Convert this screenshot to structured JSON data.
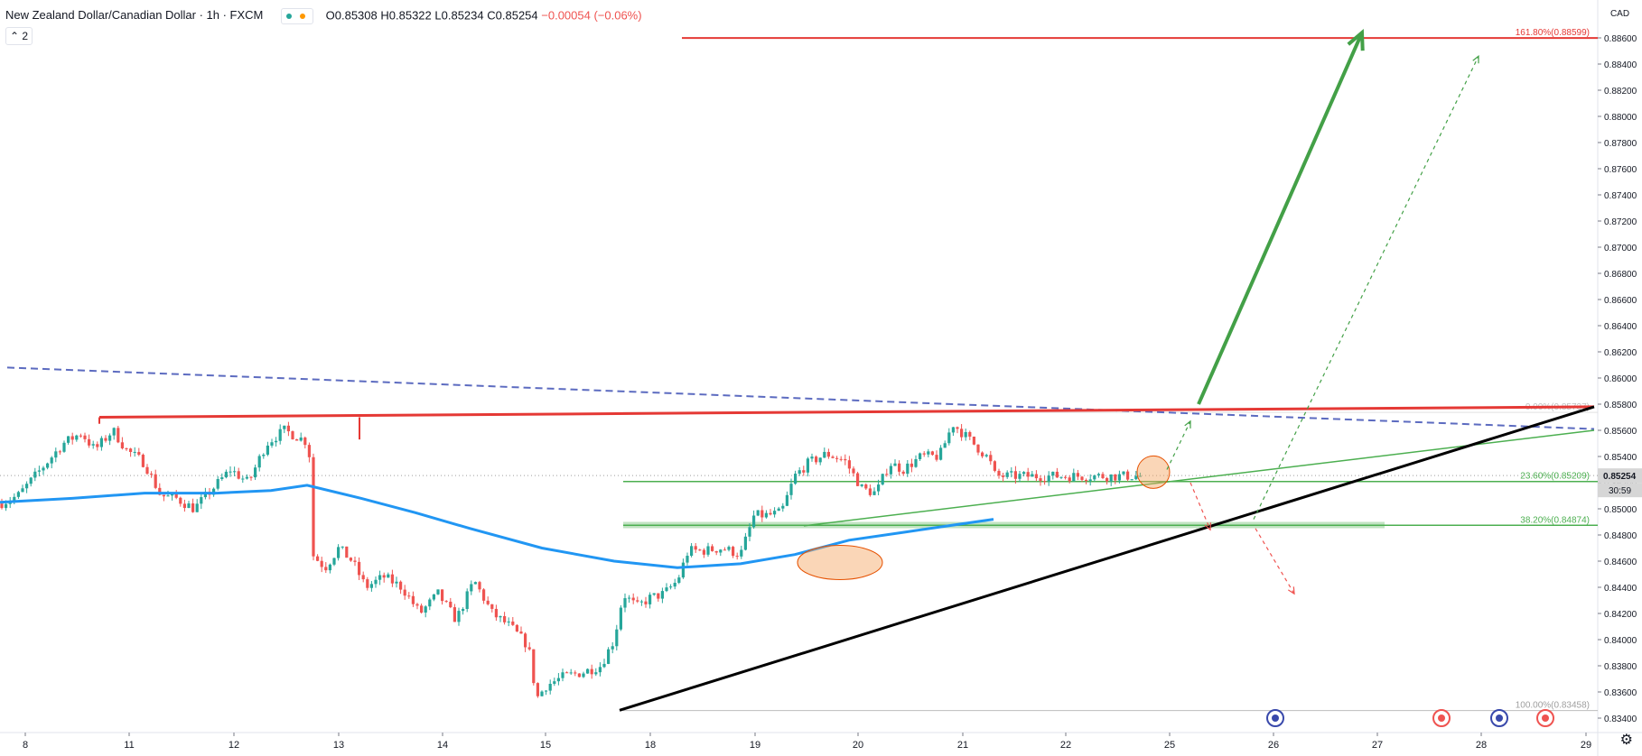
{
  "header": {
    "symbol": "New Zealand Dollar/Canadian Dollar · 1h · FXCM",
    "open": "O0.85308",
    "high": "H0.85322",
    "low": "L0.85234",
    "close": "C0.85254",
    "change": "−0.00054 (−0.06%)",
    "indicator_count": "2"
  },
  "axis": {
    "currency": "CAD",
    "current_price": "0.85254",
    "countdown": "30:59"
  },
  "colors": {
    "up": "#26a69a",
    "down": "#ef5350",
    "ma": "#2196f3",
    "resistance": "#e53935",
    "fib": "#4caf50",
    "trend": "#000000",
    "dashed": "#5c6bc0",
    "arrow": "#43a047",
    "highlight": "#f4a460"
  },
  "chart_data": {
    "type": "candlestick",
    "symbol": "NZDCAD",
    "timeframe": "1h",
    "ylim": [
      0.833,
      0.8875
    ],
    "y_ticks": [
      "0.88600",
      "0.88400",
      "0.88200",
      "0.88000",
      "0.87800",
      "0.87600",
      "0.87400",
      "0.87200",
      "0.87000",
      "0.86800",
      "0.86600",
      "0.86400",
      "0.86200",
      "0.86000",
      "0.85800",
      "0.85600",
      "0.85400",
      "0.85200",
      "0.85000",
      "0.84800",
      "0.84600",
      "0.84400",
      "0.84200",
      "0.84000",
      "0.83800",
      "0.83600",
      "0.83400"
    ],
    "x_ticks": [
      "8",
      "11",
      "12",
      "13",
      "14",
      "15",
      "18",
      "19",
      "20",
      "21",
      "22",
      "25",
      "26",
      "27",
      "28",
      "29"
    ],
    "fib_levels": [
      {
        "label": "161.80%(0.88599)",
        "price": 0.88599
      },
      {
        "label": "23.60%(0.85209)",
        "price": 0.85209
      },
      {
        "label": "38.20%(0.84874)",
        "price": 0.84874
      },
      {
        "label": "100.00%(0.83458)",
        "price": 0.83458
      },
      {
        "label": "0.00%(0.85737)",
        "price": 0.85737
      }
    ],
    "path_points": [
      [
        0,
        0.8504
      ],
      [
        20,
        0.851
      ],
      [
        45,
        0.853
      ],
      [
        70,
        0.855
      ],
      [
        90,
        0.8558
      ],
      [
        105,
        0.8545
      ],
      [
        125,
        0.856
      ],
      [
        140,
        0.8545
      ],
      [
        160,
        0.8535
      ],
      [
        178,
        0.851
      ],
      [
        195,
        0.8508
      ],
      [
        215,
        0.85
      ],
      [
        235,
        0.8515
      ],
      [
        255,
        0.853
      ],
      [
        275,
        0.852
      ],
      [
        295,
        0.855
      ],
      [
        315,
        0.856
      ],
      [
        335,
        0.8553
      ],
      [
        342,
        0.855
      ],
      [
        346,
        0.8465
      ],
      [
        360,
        0.8455
      ],
      [
        375,
        0.847
      ],
      [
        390,
        0.846
      ],
      [
        405,
        0.844
      ],
      [
        425,
        0.8448
      ],
      [
        445,
        0.844
      ],
      [
        465,
        0.842
      ],
      [
        485,
        0.8435
      ],
      [
        505,
        0.8415
      ],
      [
        525,
        0.8445
      ],
      [
        545,
        0.842
      ],
      [
        565,
        0.841
      ],
      [
        585,
        0.8395
      ],
      [
        594,
        0.8355
      ],
      [
        605,
        0.8365
      ],
      [
        625,
        0.8372
      ],
      [
        645,
        0.8375
      ],
      [
        665,
        0.838
      ],
      [
        680,
        0.84
      ],
      [
        690,
        0.8435
      ],
      [
        705,
        0.8425
      ],
      [
        720,
        0.8432
      ],
      [
        735,
        0.8435
      ],
      [
        750,
        0.8445
      ],
      [
        762,
        0.8468
      ],
      [
        780,
        0.8468
      ],
      [
        800,
        0.847
      ],
      [
        820,
        0.8465
      ],
      [
        835,
        0.8495
      ],
      [
        850,
        0.8495
      ],
      [
        865,
        0.8497
      ],
      [
        880,
        0.8525
      ],
      [
        895,
        0.8535
      ],
      [
        915,
        0.8542
      ],
      [
        935,
        0.8537
      ],
      [
        955,
        0.8515
      ],
      [
        970,
        0.8512
      ],
      [
        985,
        0.8535
      ],
      [
        1000,
        0.853
      ],
      [
        1020,
        0.854
      ],
      [
        1040,
        0.854
      ],
      [
        1055,
        0.8565
      ],
      [
        1070,
        0.8555
      ],
      [
        1085,
        0.8545
      ],
      [
        1095,
        0.8538
      ],
      [
        1102,
        0.8525
      ]
    ],
    "moving_average_points": [
      [
        0,
        0.8505
      ],
      [
        80,
        0.8508
      ],
      [
        160,
        0.8512
      ],
      [
        240,
        0.8512
      ],
      [
        300,
        0.8514
      ],
      [
        340,
        0.8518
      ],
      [
        400,
        0.8508
      ],
      [
        460,
        0.8497
      ],
      [
        520,
        0.8485
      ],
      [
        600,
        0.847
      ],
      [
        680,
        0.846
      ],
      [
        750,
        0.8455
      ],
      [
        820,
        0.8458
      ],
      [
        880,
        0.8465
      ],
      [
        940,
        0.8476
      ],
      [
        1000,
        0.8482
      ],
      [
        1060,
        0.8488
      ],
      [
        1100,
        0.8492
      ]
    ],
    "highlight_zones": [
      {
        "x_center": 802,
        "price_center": 0.8459
      },
      {
        "x_center": 1101,
        "price_center": 0.8528
      }
    ]
  }
}
